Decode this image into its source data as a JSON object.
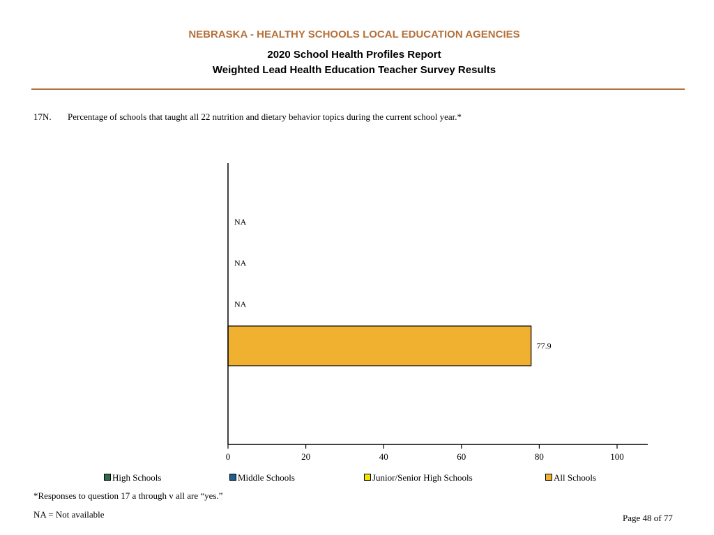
{
  "header": {
    "title": "NEBRASKA - HEALTHY SCHOOLS LOCAL EDUCATION AGENCIES",
    "subtitle1": "2020 School Health Profiles Report",
    "subtitle2": "Weighted Lead Health Education Teacher Survey Results"
  },
  "question": {
    "number": "17N.",
    "text": "Percentage of schools that taught all 22 nutrition and dietary behavior topics during the current school year.*"
  },
  "chart_data": {
    "type": "bar",
    "orientation": "horizontal",
    "categories": [
      "High Schools",
      "Middle Schools",
      "Junior/Senior High Schools",
      "All Schools"
    ],
    "values": [
      null,
      null,
      null,
      77.9
    ],
    "value_labels": [
      "NA",
      "NA",
      "NA",
      "77.9"
    ],
    "colors": [
      "#2e6b4a",
      "#1f5f8b",
      "#f2e600",
      "#f0b030"
    ],
    "xlim": [
      0,
      100
    ],
    "xticks": [
      0,
      20,
      40,
      60,
      80,
      100
    ],
    "grid": false,
    "legend_placement": "bottom"
  },
  "legend": [
    {
      "label": "High Schools",
      "color": "#2e6b4a"
    },
    {
      "label": "Middle Schools",
      "color": "#1f5f8b"
    },
    {
      "label": "Junior/Senior High Schools",
      "color": "#f2e600"
    },
    {
      "label": "All Schools",
      "color": "#f0b030"
    }
  ],
  "footnotes": {
    "responses": "*Responses to question 17 a through v all are “yes.”",
    "na": "NA = Not available"
  },
  "page": "Page 48 of 77"
}
